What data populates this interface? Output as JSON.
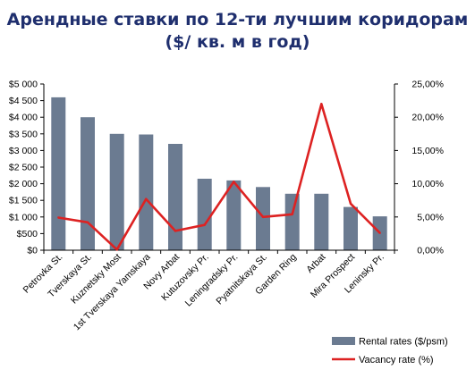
{
  "chart_data": {
    "type": "bar",
    "title_line1": "Арендные ставки по 12-ти лучшим коридорам",
    "title_line2": "($/ кв. м в год)",
    "categories": [
      "Petrovka St.",
      "Tverskaya St.",
      "Kuznetsky Most",
      "1st Tverskaya Yamskaya",
      "Novy Arbat",
      "Kutuzovsky Pr.",
      "Leningradsky Pr.",
      "Pyatnitskaya St.",
      "Garden Ring",
      "Arbat",
      "Mira Prospect",
      "Leninsky Pr."
    ],
    "series": [
      {
        "name": "Rental rates ($/psm)",
        "type": "bar",
        "axis": "left",
        "color": "#6b7b91",
        "values": [
          4600,
          4000,
          3500,
          3480,
          3200,
          2150,
          2100,
          1900,
          1700,
          1700,
          1300,
          1020
        ]
      },
      {
        "name": "Vacancy rate (%)",
        "type": "line",
        "axis": "right",
        "color": "#dd2222",
        "values": [
          4.9,
          4.2,
          0.1,
          7.7,
          2.9,
          3.8,
          10.3,
          5.0,
          5.4,
          22.0,
          7.0,
          2.6
        ]
      }
    ],
    "ylim_left": [
      0,
      5000
    ],
    "ylim_right": [
      0,
      25
    ],
    "y_left_ticks": [
      "$0",
      "$500",
      "$1 000",
      "$1 500",
      "$2 000",
      "$2 500",
      "$3 000",
      "$3 500",
      "$4 000",
      "$4 500",
      "$5 000"
    ],
    "y_right_ticks": [
      "0,00%",
      "5,00%",
      "10,00%",
      "15,00%",
      "20,00%",
      "25,00%"
    ],
    "legend_position": "bottom-right",
    "grid": false
  }
}
